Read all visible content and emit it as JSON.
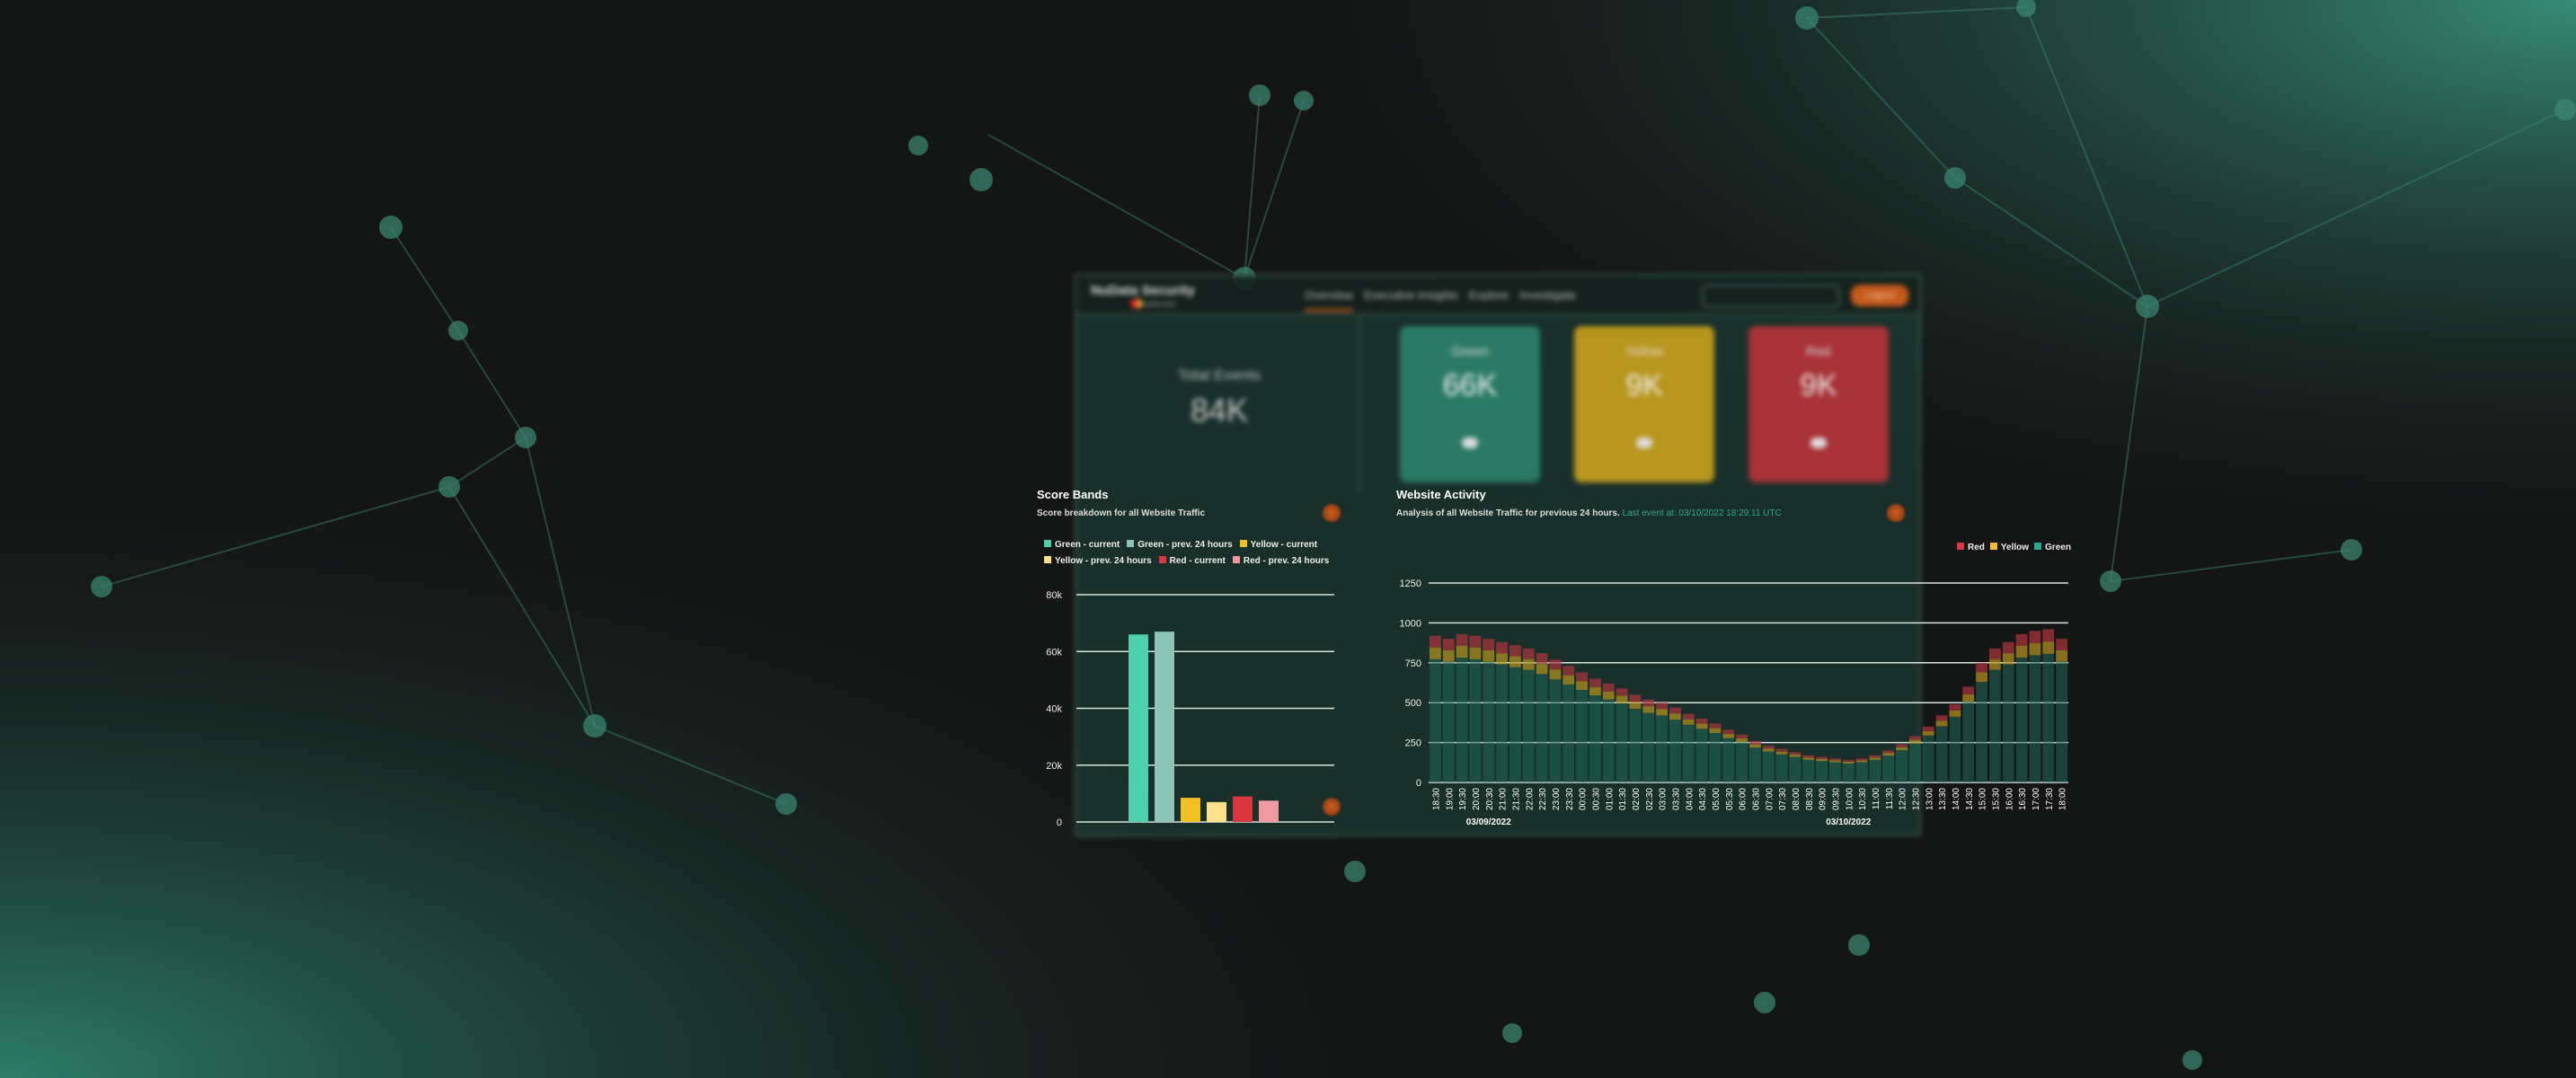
{
  "colors": {
    "green": "#2e7d68",
    "yellow": "#c49a22",
    "red": "#a8323a",
    "accent": "#c55a1a",
    "event_text": "#2fa88a"
  },
  "header": {
    "brand": "NuData Security",
    "brand_sub": "mastercard",
    "nav": [
      "Overview",
      "Executive Insights",
      "Explore",
      "Investigate"
    ],
    "active_nav": "Overview",
    "logout_label": "Logout"
  },
  "summary": {
    "total": {
      "label": "Total Events",
      "value": "84K"
    },
    "cards": [
      {
        "label": "Green",
        "value": "66K",
        "color": "#2b7a66"
      },
      {
        "label": "Yellow",
        "value": "9K",
        "color": "#b8961e"
      },
      {
        "label": "Red",
        "value": "9K",
        "color": "#a83236"
      }
    ]
  },
  "score_bands": {
    "title": "Score Bands",
    "subtitle": "Score breakdown for all Website Traffic",
    "chart_data": {
      "type": "bar",
      "categories": [
        "Green - current",
        "Green - prev. 24 hours",
        "Yellow - current",
        "Yellow - prev. 24 hours",
        "Red - current",
        "Red - prev. 24 hours"
      ],
      "values": [
        66000,
        67000,
        8500,
        7000,
        9000,
        7500
      ],
      "colors": [
        "#4ecfb0",
        "#8ec4b6",
        "#f4bf22",
        "#fde08a",
        "#d9363e",
        "#ee9aa0"
      ],
      "yticks": [
        "0",
        "20k",
        "40k",
        "60k",
        "80k"
      ],
      "ylim": [
        0,
        80000
      ],
      "legend": "top",
      "grid": true
    }
  },
  "website_activity": {
    "title": "Website Activity",
    "subtitle": "Analysis of all Website Traffic for previous 24 hours.",
    "last_event": "Last event at: 03/10/2022 18:29:11 UTC",
    "chart_data": {
      "type": "bar",
      "stacked": true,
      "categories": [
        "18:30",
        "19:00",
        "19:30",
        "20:00",
        "20:30",
        "21:00",
        "21:30",
        "22:00",
        "22:30",
        "23:00",
        "23:30",
        "00:00",
        "00:30",
        "01:00",
        "01:30",
        "02:00",
        "02:30",
        "03:00",
        "03:30",
        "04:00",
        "04:30",
        "05:00",
        "05:30",
        "06:00",
        "06:30",
        "07:00",
        "07:30",
        "08:00",
        "08:30",
        "09:00",
        "09:30",
        "10:00",
        "10:30",
        "11:00",
        "11:30",
        "12:00",
        "12:30",
        "13:00",
        "13:30",
        "14:00",
        "14:30",
        "15:00",
        "15:30",
        "16:00",
        "16:30",
        "17:00",
        "17:30",
        "18:00"
      ],
      "date_labels": [
        {
          "label": "03/09/2022",
          "at": "20:30"
        },
        {
          "label": "03/10/2022",
          "at": "10:00"
        }
      ],
      "series": [
        {
          "name": "Green",
          "color": "#1f6a58",
          "values": [
            772,
            756,
            782,
            772,
            756,
            740,
            722,
            706,
            680,
            646,
            614,
            580,
            546,
            520,
            496,
            462,
            436,
            420,
            394,
            362,
            336,
            310,
            278,
            252,
            218,
            194,
            176,
            160,
            142,
            134,
            126,
            118,
            126,
            142,
            168,
            202,
            244,
            294,
            352,
            412,
            504,
            630,
            706,
            740,
            782,
            798,
            806,
            756
          ]
        },
        {
          "name": "Yellow",
          "color": "#b8961e",
          "values": [
            74,
            72,
            74,
            74,
            72,
            70,
            69,
            67,
            65,
            62,
            58,
            55,
            52,
            50,
            47,
            44,
            42,
            40,
            38,
            34,
            32,
            30,
            26,
            24,
            21,
            18,
            17,
            15,
            14,
            13,
            12,
            11,
            12,
            14,
            16,
            19,
            23,
            28,
            34,
            39,
            48,
            60,
            67,
            70,
            74,
            76,
            77,
            72
          ]
        },
        {
          "name": "Red",
          "color": "#b0343c",
          "values": [
            74,
            72,
            74,
            74,
            72,
            70,
            69,
            67,
            65,
            62,
            58,
            55,
            52,
            50,
            47,
            44,
            42,
            40,
            38,
            34,
            32,
            30,
            26,
            24,
            21,
            18,
            17,
            15,
            14,
            13,
            12,
            11,
            12,
            14,
            16,
            19,
            23,
            28,
            34,
            39,
            48,
            60,
            67,
            70,
            74,
            76,
            77,
            72
          ]
        }
      ],
      "legend_order": [
        "Red",
        "Yellow",
        "Green"
      ],
      "yticks": [
        "0",
        "250",
        "500",
        "750",
        "1000",
        "1250"
      ],
      "ylim": [
        0,
        1250
      ],
      "legend": "top-right",
      "grid": true
    }
  }
}
